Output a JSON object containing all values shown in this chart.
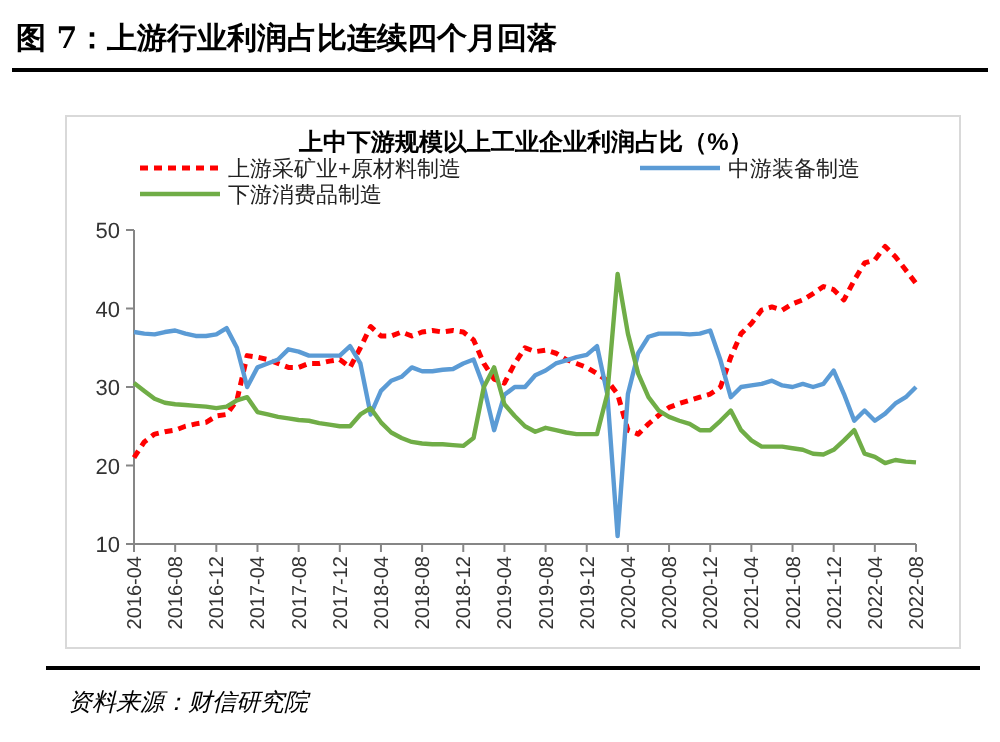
{
  "chart_data": {
    "type": "line",
    "title": "上中下游规模以上工业企业利润占比（%）",
    "subtitle": "图 7：上游行业利润占比连续四个月回落",
    "categories": [
      "2016-04",
      null,
      null,
      null,
      "2016-08",
      null,
      null,
      null,
      "2016-12",
      null,
      null,
      null,
      "2017-04",
      null,
      null,
      null,
      "2017-08",
      null,
      null,
      null,
      "2017-12",
      null,
      null,
      null,
      "2018-04",
      null,
      null,
      null,
      "2018-08",
      null,
      null,
      null,
      "2018-12",
      null,
      null,
      null,
      "2019-04",
      null,
      null,
      null,
      "2019-08",
      null,
      null,
      null,
      "2019-12",
      null,
      null,
      null,
      "2020-04",
      null,
      null,
      null,
      "2020-08",
      null,
      null,
      null,
      "2020-12",
      null,
      null,
      null,
      "2021-04",
      null,
      null,
      null,
      "2021-08",
      null,
      null,
      null,
      "2021-12",
      null,
      null,
      null,
      "2022-04",
      null,
      null,
      null,
      "2022-08"
    ],
    "series": [
      {
        "name": "上游采矿业+原材料制造",
        "color": "#ff0000",
        "line_style": "dashed",
        "values": [
          21,
          23,
          24,
          24.3,
          24.5,
          25,
          25.3,
          25.5,
          26.3,
          26.5,
          28.3,
          34,
          33.8,
          33.5,
          33,
          32.5,
          32.5,
          33,
          33,
          33.3,
          33.5,
          32.5,
          35,
          37.7,
          36.5,
          36.5,
          37,
          36.5,
          37,
          37.2,
          37,
          37.2,
          37,
          36,
          33,
          31,
          30.5,
          33,
          35,
          34.5,
          34.7,
          34.3,
          33.5,
          33,
          32.5,
          31.7,
          30.8,
          29.1,
          24.5,
          24,
          25.3,
          26.4,
          27.4,
          27.9,
          28.3,
          28.7,
          29.1,
          30,
          33.8,
          36.8,
          38.1,
          39.8,
          40.2,
          39.8,
          40.6,
          41.1,
          41.9,
          42.8,
          42.4,
          41.1,
          43.6,
          45.8,
          46.2,
          47.9,
          46.6,
          44.9,
          43.2
        ]
      },
      {
        "name": "中游装备制造",
        "color": "#5b9bd5",
        "line_style": "solid",
        "values": [
          37,
          36.8,
          36.7,
          37,
          37.2,
          36.8,
          36.5,
          36.5,
          36.7,
          37.5,
          35,
          30,
          32.5,
          33,
          33.5,
          34.8,
          34.5,
          34,
          34,
          34,
          34,
          35.2,
          33,
          26.5,
          29.5,
          30.8,
          31.3,
          32.5,
          32,
          32,
          32.2,
          32.3,
          33,
          33.5,
          30,
          24.5,
          29,
          30,
          30,
          31.5,
          32.1,
          33,
          33.4,
          33.8,
          34.1,
          35.2,
          29.1,
          11,
          29.1,
          34.3,
          36.4,
          36.8,
          36.8,
          36.8,
          36.7,
          36.8,
          37.2,
          33.4,
          28.7,
          30,
          30.2,
          30.4,
          30.8,
          30.2,
          30,
          30.4,
          30,
          30.4,
          32.1,
          29.1,
          25.7,
          27,
          25.7,
          26.6,
          27.9,
          28.7,
          30
        ]
      },
      {
        "name": "下游消费品制造",
        "color": "#70ad47",
        "line_style": "solid",
        "values": [
          30.5,
          29.5,
          28.5,
          28,
          27.8,
          27.7,
          27.6,
          27.5,
          27.3,
          27.5,
          28.3,
          28.7,
          26.8,
          26.5,
          26.2,
          26,
          25.8,
          25.7,
          25.4,
          25.2,
          25,
          25,
          26.5,
          27.3,
          25.5,
          24.2,
          23.5,
          23,
          22.8,
          22.7,
          22.7,
          22.6,
          22.5,
          23.5,
          30,
          32.5,
          27.8,
          26.3,
          25,
          24.3,
          24.8,
          24.5,
          24.2,
          24,
          24,
          24,
          29.1,
          44.4,
          36.8,
          31.7,
          28.7,
          27,
          26.2,
          25.7,
          25.3,
          24.5,
          24.5,
          25.7,
          27,
          24.5,
          23.2,
          22.4,
          22.4,
          22.4,
          22.2,
          22,
          21.5,
          21.4,
          22,
          23.2,
          24.5,
          21.5,
          21.1,
          20.3,
          20.7,
          20.5,
          20.4
        ]
      }
    ],
    "ylim": [
      10,
      50
    ],
    "yticks": [
      10,
      20,
      30,
      40,
      50
    ],
    "grid": false,
    "legend": "top",
    "annotations": [
      "资料来源：财信研究院"
    ]
  }
}
